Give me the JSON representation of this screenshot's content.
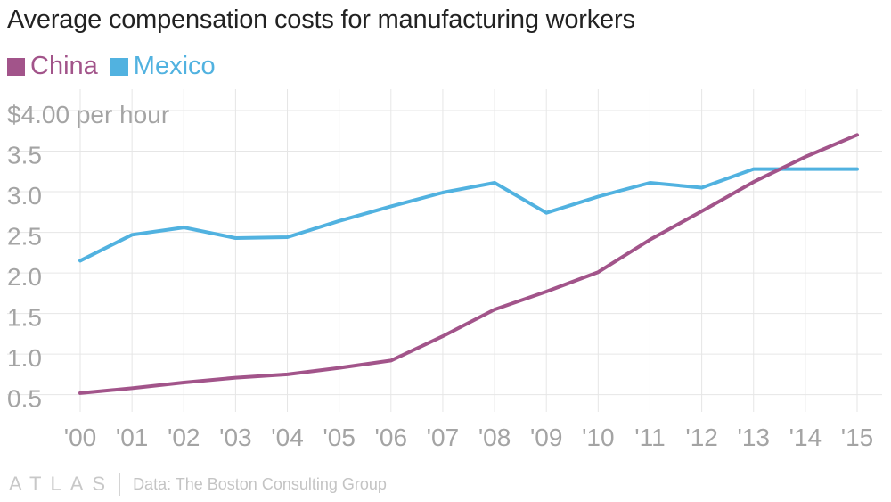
{
  "header": {
    "title": "Average compensation costs for manufacturing workers"
  },
  "footer": {
    "logo": "ATLAS",
    "source": "Data: The Boston Consulting Group"
  },
  "colors": {
    "china": "#a2548a",
    "mexico": "#51b2e0",
    "grid": "#e6e6e6",
    "tick": "#a4a4a4"
  },
  "chart_data": {
    "type": "line",
    "title": "Average compensation costs for manufacturing workers",
    "x": [
      "'00",
      "'01",
      "'02",
      "'03",
      "'04",
      "'05",
      "'06",
      "'07",
      "'08",
      "'09",
      "'10",
      "'11",
      "'12",
      "'13",
      "'14",
      "'15"
    ],
    "ytick_labels": [
      "$4.00 per hour",
      "3.5",
      "3.0",
      "2.5",
      "2.0",
      "1.5",
      "1.0",
      "0.5"
    ],
    "ytick_values": [
      4.0,
      3.5,
      3.0,
      2.5,
      2.0,
      1.5,
      1.0,
      0.5
    ],
    "ylim": [
      0.2,
      4.0
    ],
    "grid": true,
    "legend": "top-left",
    "series": [
      {
        "name": "China",
        "color": "#a2548a",
        "values": [
          0.52,
          0.58,
          0.65,
          0.71,
          0.75,
          0.83,
          0.92,
          1.22,
          1.55,
          1.77,
          2.01,
          2.41,
          2.76,
          3.12,
          3.43,
          3.7
        ]
      },
      {
        "name": "Mexico",
        "color": "#51b2e0",
        "values": [
          2.15,
          2.47,
          2.56,
          2.43,
          2.44,
          2.64,
          2.82,
          2.99,
          3.11,
          2.74,
          2.94,
          3.11,
          3.05,
          3.28,
          3.28,
          3.28
        ]
      }
    ]
  }
}
